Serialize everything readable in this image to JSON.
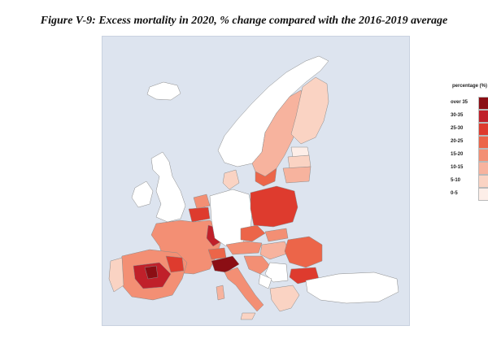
{
  "figure": {
    "title": "Figure V-9: Excess mortality in 2020, % change compared with the 2016-2019 average"
  },
  "legend": {
    "title": "percentage (%)",
    "classes": [
      {
        "label": "over 35",
        "color": "#8b0e14"
      },
      {
        "label": "30-35",
        "color": "#c0202a"
      },
      {
        "label": "25-30",
        "color": "#de3b2e"
      },
      {
        "label": "20-25",
        "color": "#ec6549"
      },
      {
        "label": "15-20",
        "color": "#f38f74"
      },
      {
        "label": "10-15",
        "color": "#f7b39e"
      },
      {
        "label": "5-10",
        "color": "#fad3c3"
      },
      {
        "label": "0-5",
        "color": "#fdeee8"
      }
    ]
  },
  "map": {
    "background_color": "#dde4ef",
    "no_data_color": "#ffffff",
    "border_color": "#8a8a8a"
  }
}
